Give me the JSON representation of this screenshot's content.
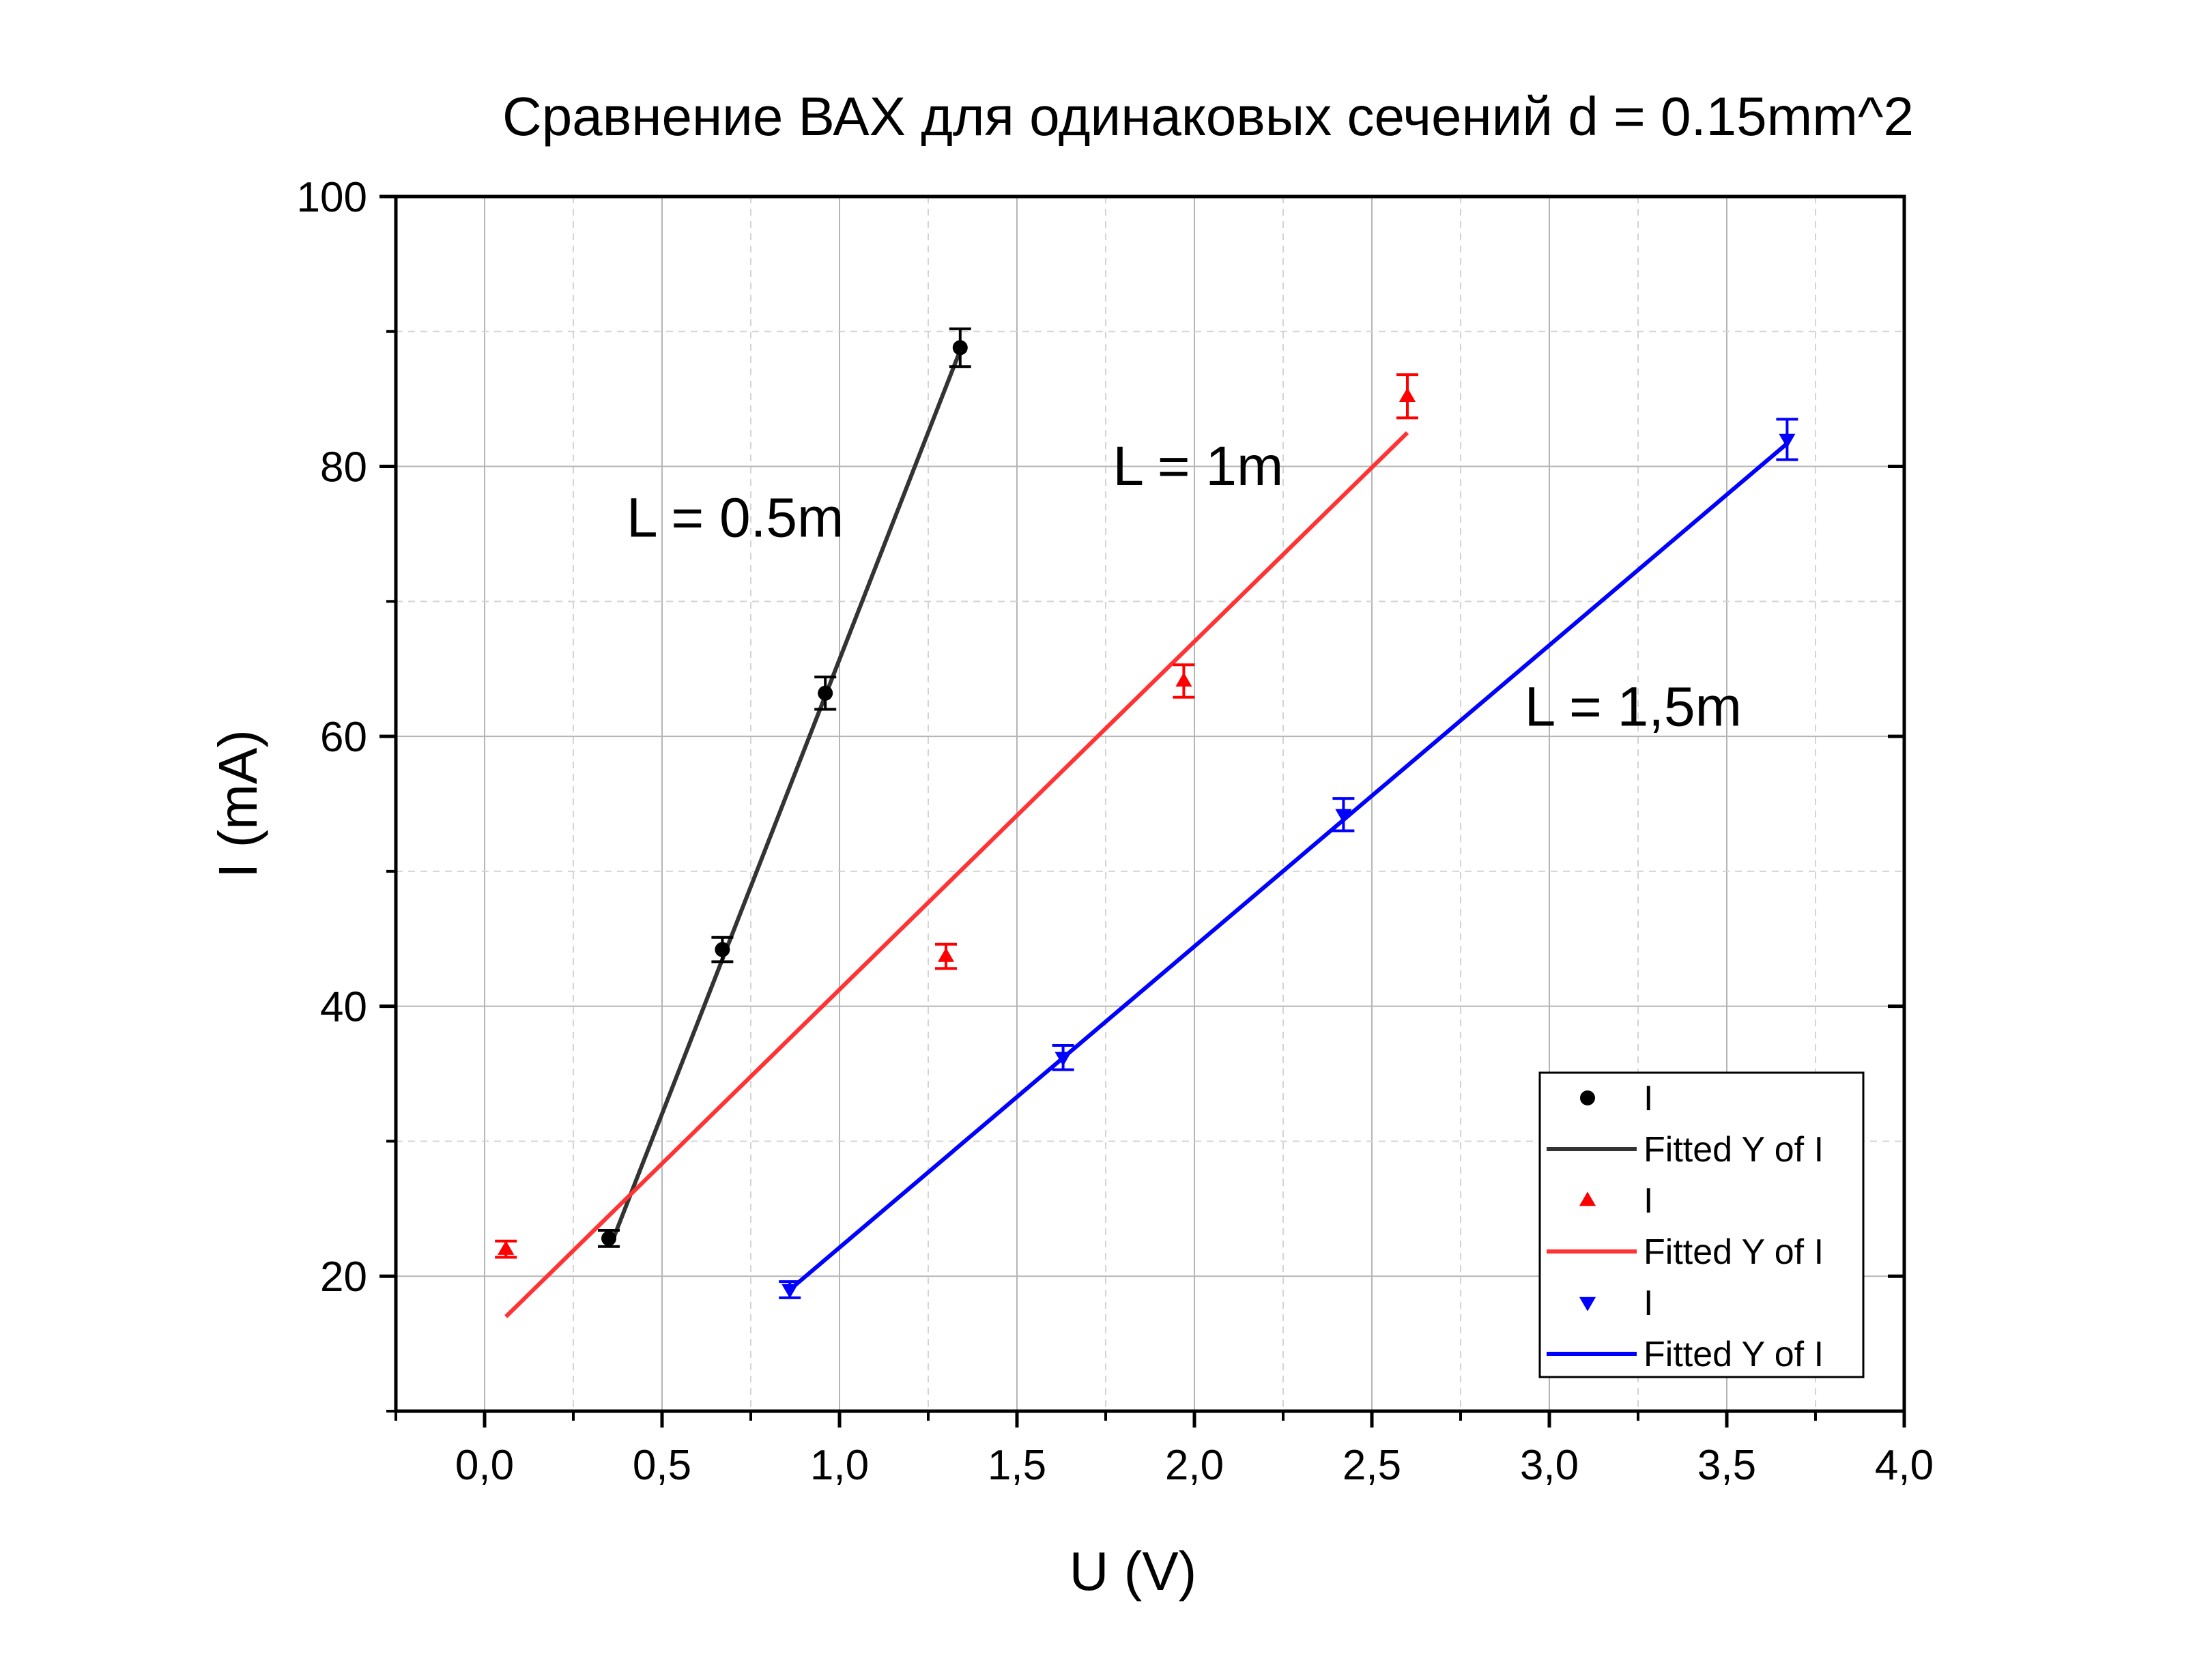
{
  "chart_data": {
    "type": "scatter",
    "title": "Сравнение ВАХ для одинаковых сечений d = 0.15mm^2",
    "xlabel": "U (V)",
    "ylabel": "I (mA)",
    "xlim": [
      -0.25,
      4.0
    ],
    "ylim": [
      10,
      100
    ],
    "x_ticks": [
      0.0,
      0.5,
      1.0,
      1.5,
      2.0,
      2.5,
      3.0,
      3.5,
      4.0
    ],
    "x_tick_labels": [
      "0,0",
      "0,5",
      "1,0",
      "1,5",
      "2,0",
      "2,5",
      "3,0",
      "3,5",
      "4,0"
    ],
    "x_minor_ticks": [
      -0.25,
      0.25,
      0.75,
      1.25,
      1.75,
      2.25,
      2.75,
      3.25,
      3.75
    ],
    "y_ticks": [
      20,
      40,
      60,
      80,
      100
    ],
    "y_tick_labels": [
      "20",
      "40",
      "60",
      "80",
      "100"
    ],
    "y_minor_ticks": [
      10,
      30,
      50,
      70,
      90
    ],
    "grid": true,
    "legend_position": "bottom-right",
    "series": [
      {
        "name": "I",
        "fit_name": "Fitted Y of I",
        "color": "#000000",
        "fit_color": "#333333",
        "marker": "circle",
        "x": [
          0.35,
          0.67,
          0.96,
          1.34
        ],
        "y": [
          22.8,
          44.2,
          63.2,
          88.8
        ],
        "error": [
          0.6,
          0.9,
          1.2,
          1.4
        ],
        "fit_x": [
          0.36,
          1.34
        ],
        "fit_y": [
          22.6,
          88.6
        ]
      },
      {
        "name": "I",
        "fit_name": "Fitted Y of I",
        "color": "#ff0000",
        "fit_color": "#ff3333",
        "marker": "triangle-up",
        "x": [
          0.06,
          1.3,
          1.97,
          2.6
        ],
        "y": [
          22.0,
          43.7,
          64.1,
          85.2
        ],
        "error": [
          0.6,
          0.9,
          1.2,
          1.6
        ],
        "fit_x": [
          0.06,
          2.6
        ],
        "fit_y": [
          17.0,
          82.5
        ]
      },
      {
        "name": "I",
        "fit_name": "Fitted Y of I",
        "color": "#0000ff",
        "fit_color": "#0000ff",
        "marker": "triangle-down",
        "x": [
          0.86,
          1.63,
          2.42,
          3.67
        ],
        "y": [
          19.0,
          36.2,
          54.2,
          82.0
        ],
        "error": [
          0.6,
          0.9,
          1.2,
          1.5
        ],
        "fit_x": [
          0.86,
          3.67
        ],
        "fit_y": [
          19.0,
          81.7
        ]
      }
    ],
    "annotations": [
      {
        "text": "L = 0.5m",
        "x": 0.4,
        "y": 74.8
      },
      {
        "text": "L = 1m",
        "x": 1.77,
        "y": 78.6
      },
      {
        "text": "L = 1,5m",
        "x": 2.93,
        "y": 60.8
      }
    ]
  }
}
